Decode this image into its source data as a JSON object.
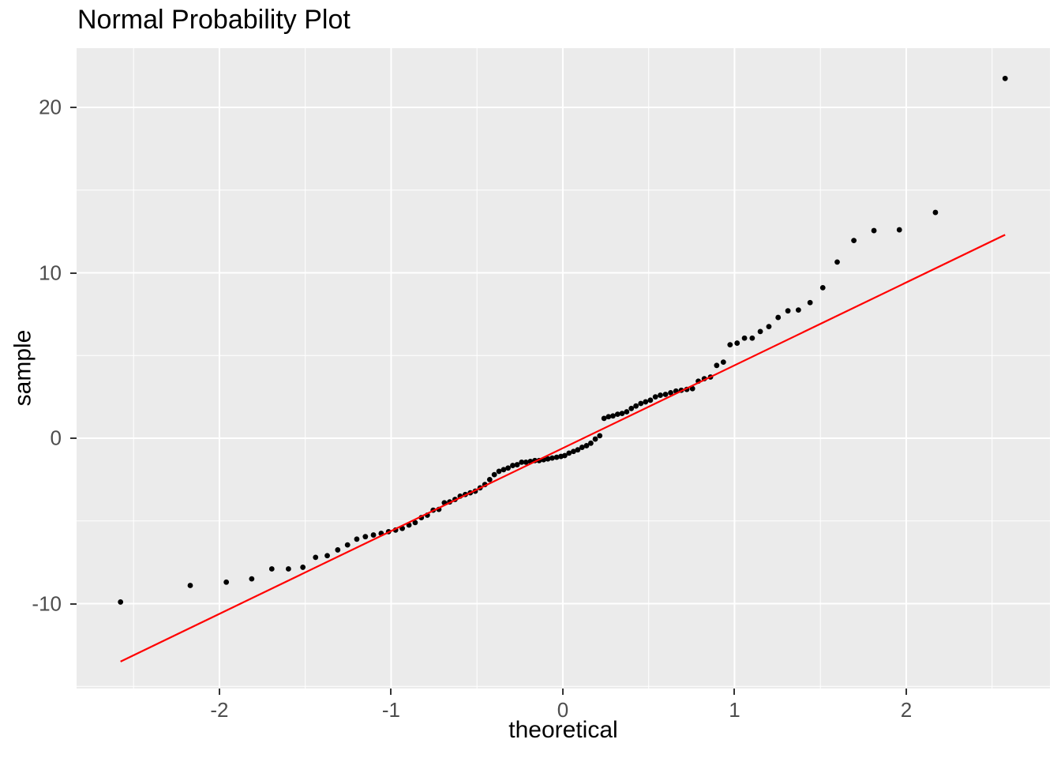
{
  "chart_data": {
    "type": "scatter",
    "title": "Normal Probability Plot",
    "xlabel": "theoretical",
    "ylabel": "sample",
    "x_domain": [
      -2.832,
      2.837
    ],
    "y_domain": [
      -15.13,
      23.58
    ],
    "x_major_ticks": [
      -2,
      -1,
      0,
      1,
      2
    ],
    "x_minor_ticks": [
      -2.5,
      -1.5,
      -0.5,
      0.5,
      1.5,
      2.5
    ],
    "y_major_ticks": [
      -10,
      0,
      10,
      20
    ],
    "y_minor_ticks": [
      -15,
      -5,
      5,
      15
    ],
    "grid": true,
    "legend": false,
    "series": [
      {
        "name": "qq-sample-points",
        "points": [
          [
            -2.576,
            -9.9
          ],
          [
            -2.17,
            -8.9
          ],
          [
            -1.96,
            -8.7
          ],
          [
            -1.812,
            -8.5
          ],
          [
            -1.695,
            -7.9
          ],
          [
            -1.598,
            -7.9
          ],
          [
            -1.514,
            -7.8
          ],
          [
            -1.44,
            -7.2
          ],
          [
            -1.372,
            -7.1
          ],
          [
            -1.311,
            -6.75
          ],
          [
            -1.254,
            -6.45
          ],
          [
            -1.2,
            -6.1
          ],
          [
            -1.15,
            -5.95
          ],
          [
            -1.103,
            -5.85
          ],
          [
            -1.058,
            -5.75
          ],
          [
            -1.015,
            -5.65
          ],
          [
            -0.974,
            -5.55
          ],
          [
            -0.935,
            -5.45
          ],
          [
            -0.896,
            -5.25
          ],
          [
            -0.86,
            -5.1
          ],
          [
            -0.824,
            -4.8
          ],
          [
            -0.789,
            -4.65
          ],
          [
            -0.755,
            -4.35
          ],
          [
            -0.722,
            -4.3
          ],
          [
            -0.69,
            -3.9
          ],
          [
            -0.659,
            -3.85
          ],
          [
            -0.628,
            -3.7
          ],
          [
            -0.598,
            -3.5
          ],
          [
            -0.568,
            -3.4
          ],
          [
            -0.539,
            -3.3
          ],
          [
            -0.51,
            -3.2
          ],
          [
            -0.482,
            -3.0
          ],
          [
            -0.454,
            -2.8
          ],
          [
            -0.426,
            -2.5
          ],
          [
            -0.399,
            -2.2
          ],
          [
            -0.372,
            -2.0
          ],
          [
            -0.345,
            -1.9
          ],
          [
            -0.319,
            -1.8
          ],
          [
            -0.292,
            -1.65
          ],
          [
            -0.266,
            -1.6
          ],
          [
            -0.24,
            -1.45
          ],
          [
            -0.215,
            -1.45
          ],
          [
            -0.189,
            -1.4
          ],
          [
            -0.163,
            -1.35
          ],
          [
            -0.138,
            -1.35
          ],
          [
            -0.112,
            -1.3
          ],
          [
            -0.087,
            -1.25
          ],
          [
            -0.062,
            -1.2
          ],
          [
            -0.036,
            -1.15
          ],
          [
            -0.011,
            -1.1
          ],
          [
            0.011,
            -1.05
          ],
          [
            0.036,
            -0.9
          ],
          [
            0.062,
            -0.8
          ],
          [
            0.087,
            -0.7
          ],
          [
            0.112,
            -0.55
          ],
          [
            0.138,
            -0.45
          ],
          [
            0.163,
            -0.3
          ],
          [
            0.189,
            -0.05
          ],
          [
            0.215,
            0.15
          ],
          [
            0.24,
            1.2
          ],
          [
            0.266,
            1.3
          ],
          [
            0.292,
            1.35
          ],
          [
            0.319,
            1.45
          ],
          [
            0.345,
            1.5
          ],
          [
            0.372,
            1.6
          ],
          [
            0.399,
            1.8
          ],
          [
            0.426,
            1.95
          ],
          [
            0.454,
            2.1
          ],
          [
            0.482,
            2.2
          ],
          [
            0.51,
            2.3
          ],
          [
            0.539,
            2.5
          ],
          [
            0.568,
            2.6
          ],
          [
            0.598,
            2.65
          ],
          [
            0.628,
            2.75
          ],
          [
            0.659,
            2.85
          ],
          [
            0.69,
            2.9
          ],
          [
            0.722,
            2.95
          ],
          [
            0.755,
            3.0
          ],
          [
            0.789,
            3.45
          ],
          [
            0.824,
            3.6
          ],
          [
            0.86,
            3.7
          ],
          [
            0.896,
            4.4
          ],
          [
            0.935,
            4.6
          ],
          [
            0.974,
            5.65
          ],
          [
            1.015,
            5.75
          ],
          [
            1.058,
            6.05
          ],
          [
            1.103,
            6.05
          ],
          [
            1.15,
            6.45
          ],
          [
            1.2,
            6.75
          ],
          [
            1.254,
            7.3
          ],
          [
            1.311,
            7.7
          ],
          [
            1.372,
            7.75
          ],
          [
            1.44,
            8.2
          ],
          [
            1.514,
            9.1
          ],
          [
            1.598,
            10.65
          ],
          [
            1.695,
            11.95
          ],
          [
            1.812,
            12.55
          ],
          [
            1.96,
            12.6
          ],
          [
            2.17,
            13.65
          ],
          [
            2.576,
            21.75
          ]
        ]
      }
    ],
    "reference_line": {
      "x1": -2.576,
      "y1": -13.5,
      "x2": 2.576,
      "y2": 12.3
    },
    "colors": {
      "background": "#FFFFFF",
      "panel": "#EBEBEB",
      "grid": "#FFFFFF",
      "point": "#000000",
      "reference_line": "#FF0000",
      "tick_text": "#4D4D4D",
      "axis_text": "#000000",
      "tick_mark": "#333333"
    }
  }
}
